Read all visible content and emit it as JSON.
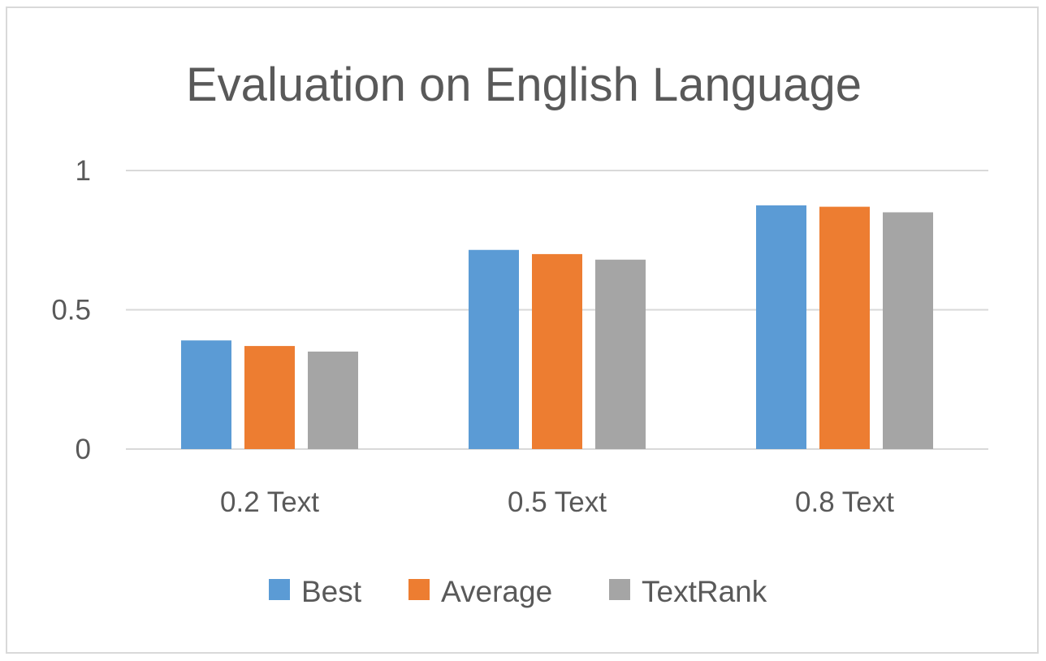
{
  "chart_data": {
    "type": "bar",
    "title": "Evaluation on English Language",
    "xlabel": "",
    "ylabel": "",
    "categories": [
      "0.2 Text",
      "0.5 Text",
      "0.8 Text"
    ],
    "series": [
      {
        "name": "Best",
        "values": [
          0.39,
          0.715,
          0.875
        ],
        "color": "#5b9bd5"
      },
      {
        "name": "Average",
        "values": [
          0.37,
          0.7,
          0.87
        ],
        "color": "#ed7d31"
      },
      {
        "name": "TextRank",
        "values": [
          0.35,
          0.68,
          0.85
        ],
        "color": "#a5a5a5"
      }
    ],
    "ylim": [
      0,
      1
    ],
    "yticks": [
      0,
      0.5,
      1
    ],
    "ytick_labels": [
      "0",
      "0.5",
      "1"
    ],
    "grid": true,
    "gridline_color": "#d9d9d9",
    "legend_position": "bottom"
  }
}
